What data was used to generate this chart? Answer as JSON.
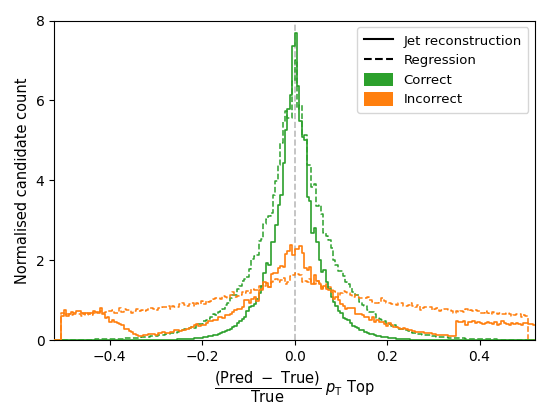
{
  "ylabel": "Normalised candidate count",
  "xlim": [
    -0.52,
    0.52
  ],
  "ylim": [
    0,
    8
  ],
  "yticks": [
    0,
    2,
    4,
    6,
    8
  ],
  "xticks": [
    -0.4,
    -0.2,
    0.0,
    0.2,
    0.4
  ],
  "green_color": "#2ca02c",
  "orange_color": "#ff7f0e",
  "vline_color": "#bbbbbb",
  "n_bins": 200,
  "seed": 12345,
  "noise_scale": 0.055,
  "correct_jet_b": 0.042,
  "correct_jet_peak": 7.2,
  "correct_reg_b": 0.072,
  "correct_reg_peak": 6.7,
  "incorrect_jet_b": 0.11,
  "incorrect_jet_peak": 2.35,
  "incorrect_jet_flat": 0.65,
  "incorrect_jet_flat_thresh": -0.42,
  "incorrect_reg_b": 0.2,
  "incorrect_reg_peak": 1.05,
  "incorrect_reg_flat": 0.55,
  "figwidth": 5.5,
  "figheight": 4.2
}
